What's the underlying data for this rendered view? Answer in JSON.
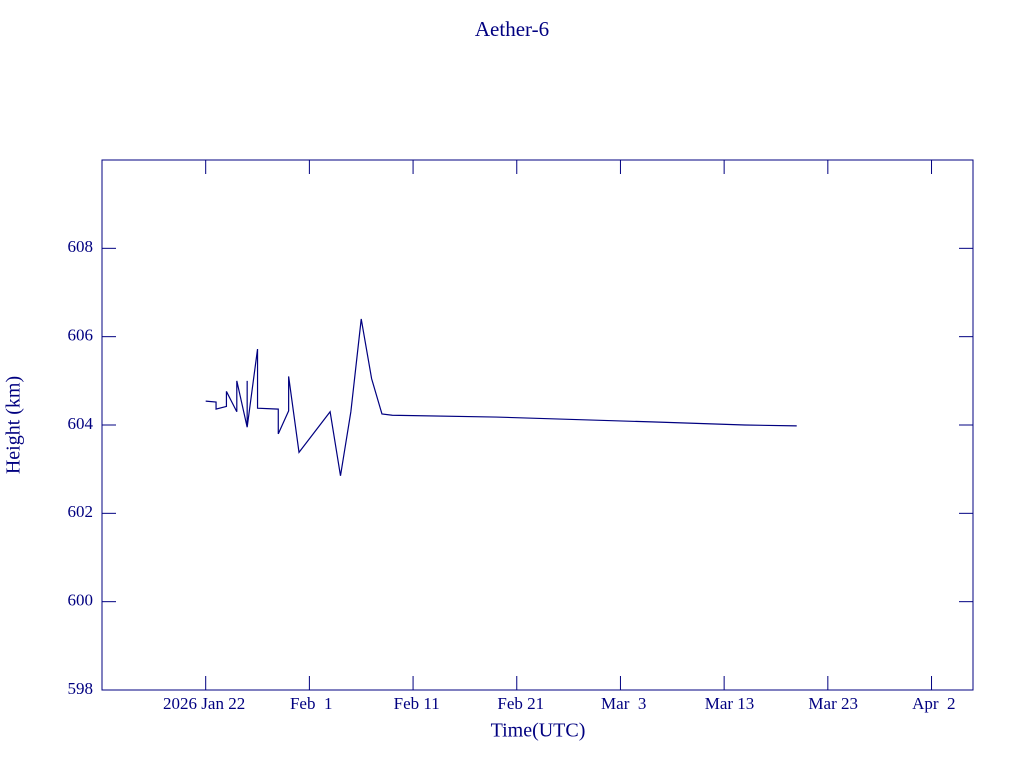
{
  "chart_data": {
    "type": "line",
    "title": "Aether-6",
    "x_label": "Time(UTC)",
    "y_label": "Height (km)",
    "color": "#000080",
    "xlim": [
      "2026-01-12",
      "2026-04-06"
    ],
    "xticks": [
      {
        "value": "2026-01-22",
        "label": "2026 Jan 22"
      },
      {
        "value": "2026-02-01",
        "label": "Feb  1"
      },
      {
        "value": "2026-02-11",
        "label": "Feb 11"
      },
      {
        "value": "2026-02-21",
        "label": "Feb 21"
      },
      {
        "value": "2026-03-03",
        "label": "Mar  3"
      },
      {
        "value": "2026-03-13",
        "label": "Mar 13"
      },
      {
        "value": "2026-03-23",
        "label": "Mar 23"
      },
      {
        "value": "2026-04-02",
        "label": "Apr  2"
      }
    ],
    "ylim": [
      598,
      610
    ],
    "yticks": [
      598,
      600,
      602,
      604,
      606,
      608
    ],
    "x": [
      "2026-01-22",
      "2026-01-23",
      "2026-01-23",
      "2026-01-24",
      "2026-01-24",
      "2026-01-25",
      "2026-01-25",
      "2026-01-26",
      "2026-01-26",
      "2026-01-26",
      "2026-01-27",
      "2026-01-27",
      "2026-01-29",
      "2026-01-29",
      "2026-01-30",
      "2026-01-30",
      "2026-01-31",
      "2026-02-03",
      "2026-02-04",
      "2026-02-05",
      "2026-02-06",
      "2026-02-07",
      "2026-02-08",
      "2026-02-09",
      "2026-02-19",
      "2026-03-06",
      "2026-03-15",
      "2026-03-20"
    ],
    "values": [
      604.54,
      604.52,
      604.36,
      604.42,
      604.76,
      604.3,
      605.0,
      603.95,
      605.0,
      603.95,
      605.72,
      604.38,
      604.36,
      603.8,
      604.32,
      605.1,
      603.38,
      604.3,
      602.85,
      604.3,
      606.4,
      605.05,
      604.25,
      604.22,
      604.18,
      604.07,
      604.0,
      603.98
    ]
  }
}
